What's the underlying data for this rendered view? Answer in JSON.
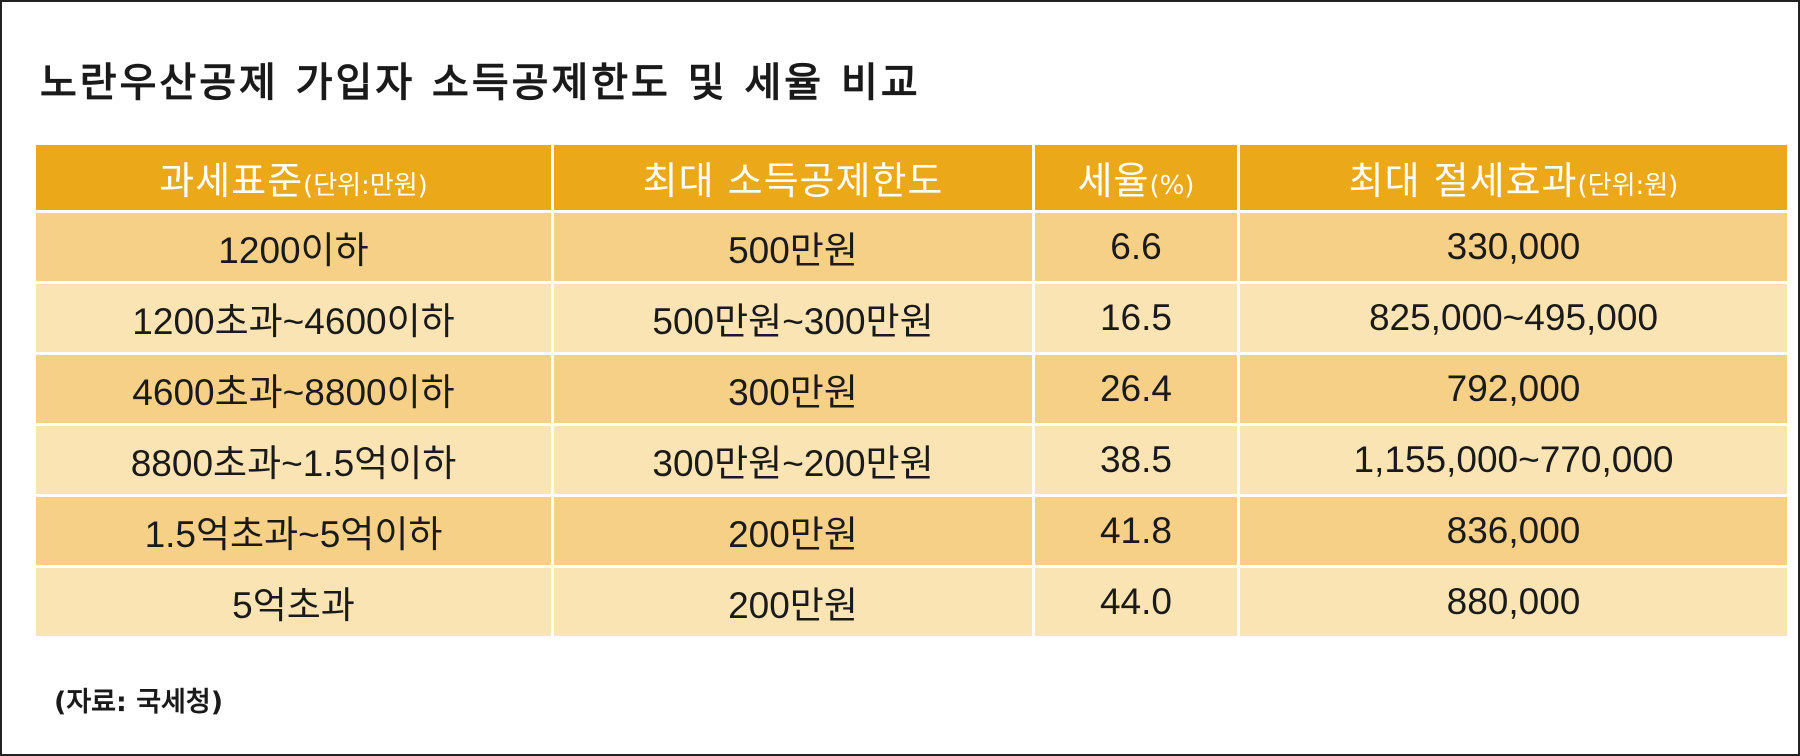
{
  "title": "노란우산공제 가입자 소득공제한도 및 세율 비교",
  "header": [
    {
      "label": "과세표준",
      "unit": "(단위:만원)"
    },
    {
      "label": "최대 소득공제한도",
      "unit": ""
    },
    {
      "label": "세율",
      "unit": "(%)"
    },
    {
      "label": "최대 절세효과",
      "unit": "(단위:원)"
    }
  ],
  "rows": [
    {
      "bracket": "1200이하",
      "deduction": "500만원",
      "rate": "6.6",
      "saving": "330,000"
    },
    {
      "bracket": "1200초과~4600이하",
      "deduction": "500만원~300만원",
      "rate": "16.5",
      "saving": "825,000~495,000"
    },
    {
      "bracket": "4600초과~8800이하",
      "deduction": "300만원",
      "rate": "26.4",
      "saving": "792,000"
    },
    {
      "bracket": "8800초과~1.5억이하",
      "deduction": "300만원~200만원",
      "rate": "38.5",
      "saving": "1,155,000~770,000"
    },
    {
      "bracket": "1.5억초과~5억이하",
      "deduction": "200만원",
      "rate": "41.8",
      "saving": "836,000"
    },
    {
      "bracket": "5억초과",
      "deduction": "200만원",
      "rate": "44.0",
      "saving": "880,000"
    }
  ],
  "source": "(자료: 국세청)",
  "colors": {
    "header_bg": "#eba919",
    "row_odd": "#f6d086",
    "row_even": "#fbe4b4"
  }
}
